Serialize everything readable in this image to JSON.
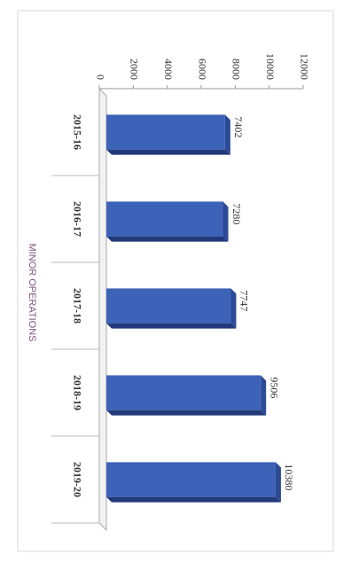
{
  "chart_data": {
    "type": "bar",
    "x_label": "MINOR OPERATIONS",
    "categories": [
      "2015-16",
      "2016-17",
      "2017-18",
      "2018-19",
      "2019-20"
    ],
    "values": [
      7402,
      7280,
      7747,
      9506,
      10380
    ],
    "color": "#3d63b9",
    "ylim": [
      0,
      12000
    ],
    "yticks": [
      0,
      2000,
      4000,
      6000,
      8000,
      10000,
      12000
    ],
    "grid": false
  }
}
